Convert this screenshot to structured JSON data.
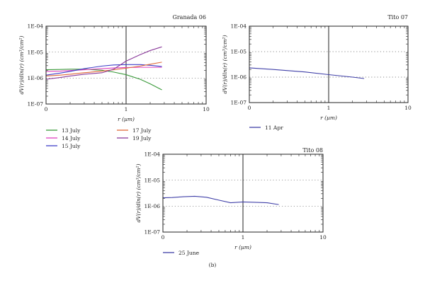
{
  "caption": "(b)",
  "chart_data": [
    {
      "id": "granada",
      "type": "line",
      "title": "Granada 06",
      "xlabel": "r (µm)",
      "ylabel": "dV(r)/dln(r) (cm³/cm²)",
      "x_scale": "log",
      "y_scale": "log",
      "xlim": [
        0.1,
        10
      ],
      "ylim": [
        1e-07,
        0.0001
      ],
      "x_ticks": [
        "0",
        "1",
        "10"
      ],
      "y_ticks": [
        "1E-07",
        "1E-06",
        "1E-05",
        "1E-04"
      ],
      "x": [
        0.1,
        0.15,
        0.2,
        0.3,
        0.5,
        0.7,
        1.0,
        1.5,
        2.0,
        2.8
      ],
      "series": [
        {
          "name": "13 July",
          "color": "#3a9a3a",
          "values": [
            2.1e-06,
            2.15e-06,
            2.2e-06,
            2.2e-06,
            2e-06,
            1.7e-06,
            1.35e-06,
            9e-07,
            6e-07,
            3.5e-07
          ]
        },
        {
          "name": "14 July",
          "color": "#e040c0",
          "values": [
            1.8e-06,
            1.85e-06,
            1.95e-06,
            2.1e-06,
            2.3e-06,
            2.45e-06,
            2.55e-06,
            2.6e-06,
            2.6e-06,
            2.6e-06
          ]
        },
        {
          "name": "15 July",
          "color": "#4040c8",
          "values": [
            1.3e-06,
            1.55e-06,
            1.8e-06,
            2.3e-06,
            2.9e-06,
            3.2e-06,
            3.3e-06,
            3.3e-06,
            3.1e-06,
            2.8e-06
          ]
        },
        {
          "name": "17 July",
          "color": "#e06a3a",
          "values": [
            1.2e-06,
            1.3e-06,
            1.4e-06,
            1.6e-06,
            1.85e-06,
            2.1e-06,
            2.4e-06,
            2.9e-06,
            3.4e-06,
            4.1e-06
          ]
        },
        {
          "name": "19 July",
          "color": "#8a3a9a",
          "values": [
            9e-07,
            1.05e-06,
            1.2e-06,
            1.4e-06,
            1.6e-06,
            2.2e-06,
            4.5e-06,
            8e-06,
            1.15e-05,
            1.6e-05
          ]
        }
      ]
    },
    {
      "id": "tito07",
      "type": "line",
      "title": "Tito 07",
      "xlabel": "r (µm)",
      "ylabel": "dV(r)/dln(r) (cm³/cm²)",
      "x_scale": "log",
      "y_scale": "log",
      "xlim": [
        0.1,
        10
      ],
      "ylim": [
        1e-07,
        0.0001
      ],
      "x_ticks": [
        "0",
        "1",
        "10"
      ],
      "y_ticks": [
        "1E-07",
        "1E-06",
        "1E-05",
        "1E-04"
      ],
      "x": [
        0.1,
        0.2,
        0.5,
        1.0,
        2.0,
        2.8
      ],
      "series": [
        {
          "name": "11 Apr",
          "color": "#4040a8",
          "values": [
            2.3e-06,
            2e-06,
            1.6e-06,
            1.25e-06,
            1e-06,
            8.8e-07
          ]
        }
      ]
    },
    {
      "id": "tito08",
      "type": "line",
      "title": "Tito 08",
      "xlabel": "r (µm)",
      "ylabel": "dV(r)/dln(r) (cm³/cm²)",
      "x_scale": "log",
      "y_scale": "log",
      "xlim": [
        0.1,
        10
      ],
      "ylim": [
        1e-07,
        0.0001
      ],
      "x_ticks": [
        "0",
        "1",
        "10"
      ],
      "y_ticks": [
        "1E-07",
        "1E-06",
        "1E-05",
        "1E-04"
      ],
      "x": [
        0.1,
        0.13,
        0.18,
        0.25,
        0.35,
        0.5,
        0.7,
        1.0,
        1.4,
        2.0,
        2.8
      ],
      "series": [
        {
          "name": "25 June",
          "color": "#4040a8",
          "values": [
            2.1e-06,
            2.15e-06,
            2.3e-06,
            2.4e-06,
            2.2e-06,
            1.7e-06,
            1.35e-06,
            1.45e-06,
            1.4e-06,
            1.35e-06,
            1.15e-06
          ]
        }
      ]
    }
  ]
}
